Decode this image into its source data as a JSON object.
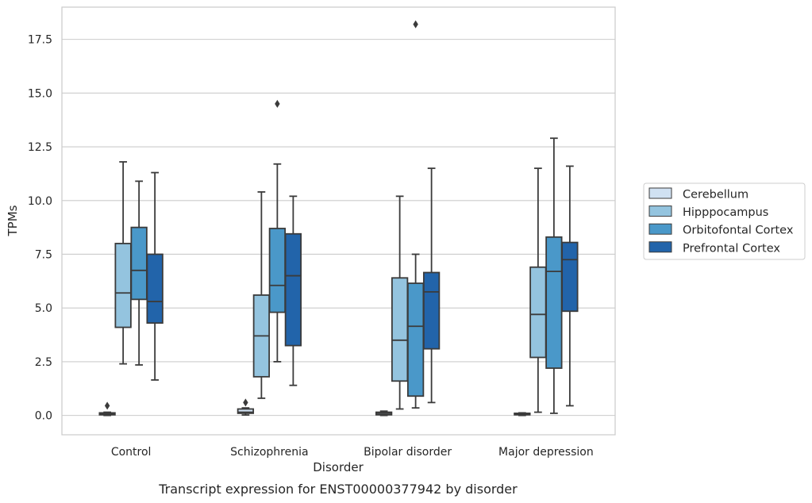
{
  "chart_data": {
    "type": "box",
    "caption": "Transcript expression for ENST00000377942 by disorder",
    "xlabel": "Disorder",
    "ylabel": "TPMs",
    "ylim": [
      -0.9,
      19.0
    ],
    "yticks": [
      0.0,
      2.5,
      5.0,
      7.5,
      10.0,
      12.5,
      15.0,
      17.5
    ],
    "ytick_labels": [
      "0.0",
      "2.5",
      "5.0",
      "7.5",
      "10.0",
      "12.5",
      "15.0",
      "17.5"
    ],
    "grid": "horizontal",
    "legend_position": "right",
    "categories": [
      "Control",
      "Schizophrenia",
      "Bipolar disorder",
      "Major depression"
    ],
    "series": [
      {
        "name": "Cerebellum",
        "color": "#d0e1f2",
        "boxes": [
          {
            "whislo": 0.0,
            "q1": 0.03,
            "med": 0.07,
            "q3": 0.12,
            "whishi": 0.15,
            "fliers": [
              0.45
            ]
          },
          {
            "whislo": 0.02,
            "q1": 0.1,
            "med": 0.15,
            "q3": 0.3,
            "whishi": 0.35,
            "fliers": [
              0.6
            ]
          },
          {
            "whislo": 0.0,
            "q1": 0.03,
            "med": 0.1,
            "q3": 0.15,
            "whishi": 0.2,
            "fliers": []
          },
          {
            "whislo": 0.0,
            "q1": 0.03,
            "med": 0.07,
            "q3": 0.1,
            "whishi": 0.12,
            "fliers": []
          }
        ]
      },
      {
        "name": "Hipppocampus",
        "color": "#94c4df",
        "boxes": [
          {
            "whislo": 2.4,
            "q1": 4.1,
            "med": 5.7,
            "q3": 8.0,
            "whishi": 11.8,
            "fliers": []
          },
          {
            "whislo": 0.8,
            "q1": 1.8,
            "med": 3.7,
            "q3": 5.6,
            "whishi": 10.4,
            "fliers": []
          },
          {
            "whislo": 0.3,
            "q1": 1.6,
            "med": 3.5,
            "q3": 6.4,
            "whishi": 10.2,
            "fliers": []
          },
          {
            "whislo": 0.15,
            "q1": 2.7,
            "med": 4.7,
            "q3": 6.9,
            "whishi": 11.5,
            "fliers": []
          }
        ]
      },
      {
        "name": "Orbitofontal Cortex",
        "color": "#4a98c9",
        "boxes": [
          {
            "whislo": 2.35,
            "q1": 5.4,
            "med": 6.75,
            "q3": 8.75,
            "whishi": 10.9,
            "fliers": []
          },
          {
            "whislo": 2.5,
            "q1": 4.8,
            "med": 6.05,
            "q3": 8.7,
            "whishi": 11.7,
            "fliers": [
              14.5
            ]
          },
          {
            "whislo": 0.35,
            "q1": 0.9,
            "med": 4.15,
            "q3": 6.15,
            "whishi": 7.5,
            "fliers": [
              18.2
            ]
          },
          {
            "whislo": 0.1,
            "q1": 2.2,
            "med": 6.7,
            "q3": 8.3,
            "whishi": 12.9,
            "fliers": []
          }
        ]
      },
      {
        "name": "Prefrontal Cortex",
        "color": "#2264aa",
        "boxes": [
          {
            "whislo": 1.65,
            "q1": 4.3,
            "med": 5.3,
            "q3": 7.5,
            "whishi": 11.3,
            "fliers": []
          },
          {
            "whislo": 1.4,
            "q1": 3.25,
            "med": 6.5,
            "q3": 8.45,
            "whishi": 10.2,
            "fliers": []
          },
          {
            "whislo": 0.6,
            "q1": 3.1,
            "med": 5.75,
            "q3": 6.65,
            "whishi": 11.5,
            "fliers": []
          },
          {
            "whislo": 0.45,
            "q1": 4.85,
            "med": 7.25,
            "q3": 8.05,
            "whishi": 11.6,
            "fliers": []
          }
        ]
      }
    ]
  }
}
